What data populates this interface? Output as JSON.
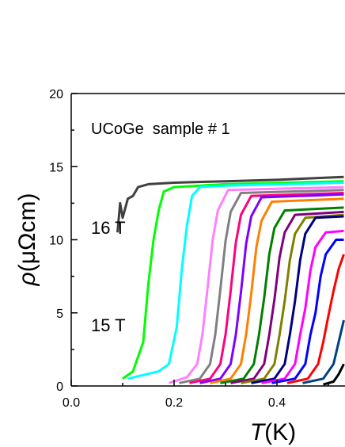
{
  "chart_data": {
    "type": "line",
    "annotations": [
      "UCoGe  sample # 1",
      "16 T",
      "15 T"
    ],
    "xlabel": {
      "symbol": "T",
      "unit": "(K)"
    },
    "ylabel": {
      "symbol": "ρ",
      "unit": "(μΩcm)"
    },
    "xlim": [
      0,
      0.53
    ],
    "ylim": [
      0,
      20
    ],
    "xticks": [
      {
        "value": 0,
        "label": "0.0"
      },
      0.2,
      0.4
    ],
    "xminorticks": [
      0.1,
      0.3,
      0.5
    ],
    "yticks": [
      0,
      5,
      10,
      15,
      20
    ],
    "yminorticks": [
      2.5,
      7.5,
      12.5,
      17.5
    ],
    "series": [
      {
        "color": "#404040",
        "x": [
          0.09,
          0.095,
          0.1,
          0.11,
          0.12,
          0.13,
          0.15,
          0.2,
          0.3,
          0.4,
          0.53
        ],
        "values": [
          10.5,
          12.5,
          11.5,
          12.8,
          13,
          13.6,
          13.8,
          13.9,
          14,
          14.1,
          14.3
        ]
      },
      {
        "color": "#00ff00",
        "x": [
          0.1,
          0.12,
          0.14,
          0.15,
          0.16,
          0.17,
          0.18,
          0.2,
          0.3,
          0.53
        ],
        "values": [
          0.5,
          1,
          3,
          7,
          10,
          12,
          13.3,
          13.6,
          13.8,
          14
        ]
      },
      {
        "color": "#00ffff",
        "x": [
          0.11,
          0.17,
          0.19,
          0.205,
          0.215,
          0.225,
          0.235,
          0.25,
          0.3,
          0.53
        ],
        "values": [
          0.5,
          1,
          1.5,
          4,
          8,
          11,
          13,
          13.6,
          13.7,
          13.9
        ]
      },
      {
        "color": "#ff80ff",
        "x": [
          0.19,
          0.225,
          0.245,
          0.255,
          0.265,
          0.275,
          0.285,
          0.305,
          0.53
        ],
        "values": [
          0.2,
          0.6,
          1.5,
          3.5,
          6.7,
          10,
          12,
          13.4,
          13.6
        ]
      },
      {
        "color": "#808080",
        "x": [
          0.21,
          0.25,
          0.27,
          0.28,
          0.29,
          0.3,
          0.31,
          0.33,
          0.53
        ],
        "values": [
          0.2,
          0.5,
          1.5,
          3.5,
          6.6,
          9.9,
          11.9,
          13.2,
          13.4
        ]
      },
      {
        "color": "#ff0080",
        "x": [
          0.23,
          0.27,
          0.29,
          0.3,
          0.31,
          0.32,
          0.33,
          0.35,
          0.53
        ],
        "values": [
          0.2,
          0.5,
          1.5,
          3.5,
          6.5,
          9.8,
          11.7,
          13,
          13.2
        ]
      },
      {
        "color": "#8000ff",
        "x": [
          0.25,
          0.29,
          0.31,
          0.32,
          0.33,
          0.34,
          0.35,
          0.37,
          0.53
        ],
        "values": [
          0.2,
          0.5,
          1.5,
          3.5,
          6.4,
          9.7,
          11.6,
          12.9,
          13.1
        ]
      },
      {
        "color": "#ff8000",
        "x": [
          0.27,
          0.31,
          0.33,
          0.34,
          0.35,
          0.36,
          0.37,
          0.39,
          0.53
        ],
        "values": [
          0.2,
          0.5,
          1.5,
          3.5,
          6.3,
          9.5,
          11.3,
          12.6,
          12.8
        ]
      },
      {
        "color": "#008000",
        "x": [
          0.29,
          0.335,
          0.355,
          0.365,
          0.375,
          0.385,
          0.395,
          0.415,
          0.53
        ],
        "values": [
          0.2,
          0.5,
          1.5,
          3.5,
          6,
          9,
          10.8,
          12,
          12.2
        ]
      },
      {
        "color": "#800080",
        "x": [
          0.31,
          0.355,
          0.375,
          0.385,
          0.395,
          0.405,
          0.415,
          0.435,
          0.53
        ],
        "values": [
          0.2,
          0.5,
          1.5,
          3.5,
          5.9,
          8.8,
          10.5,
          11.7,
          11.9
        ]
      },
      {
        "color": "#808000",
        "x": [
          0.33,
          0.375,
          0.395,
          0.405,
          0.415,
          0.425,
          0.435,
          0.455,
          0.53
        ],
        "values": [
          0.2,
          0.5,
          1.5,
          3.5,
          5.8,
          8.6,
          10.4,
          11.5,
          11.7
        ]
      },
      {
        "color": "#000080",
        "x": [
          0.35,
          0.395,
          0.415,
          0.425,
          0.435,
          0.445,
          0.455,
          0.475,
          0.53
        ],
        "values": [
          0.2,
          0.5,
          1.5,
          3.5,
          5.8,
          8.6,
          10.4,
          11.5,
          11.6
        ]
      },
      {
        "color": "#ff00ff",
        "x": [
          0.37,
          0.415,
          0.435,
          0.445,
          0.455,
          0.465,
          0.475,
          0.495,
          0.53
        ],
        "values": [
          0.2,
          0.5,
          1.5,
          3.5,
          5.3,
          7.9,
          9.5,
          10.5,
          10.6
        ]
      },
      {
        "color": "#0000ff",
        "x": [
          0.39,
          0.435,
          0.455,
          0.465,
          0.475,
          0.485,
          0.495,
          0.515,
          0.53
        ],
        "values": [
          0.2,
          0.5,
          1.5,
          3.5,
          5,
          7.5,
          9,
          10,
          10
        ]
      },
      {
        "color": "#ff0000",
        "x": [
          0.42,
          0.46,
          0.48,
          0.49,
          0.5,
          0.51,
          0.52,
          0.53
        ],
        "values": [
          0.2,
          0.5,
          1.5,
          3,
          4.8,
          6.5,
          8,
          9
        ]
      },
      {
        "color": "#004080",
        "x": [
          0.45,
          0.49,
          0.51,
          0.52,
          0.53
        ],
        "values": [
          0.2,
          0.5,
          1.5,
          3,
          4.5
        ]
      },
      {
        "color": "#000000",
        "x": [
          0.49,
          0.51,
          0.52,
          0.53
        ],
        "values": [
          0.1,
          0.3,
          0.8,
          1.5
        ]
      }
    ]
  }
}
